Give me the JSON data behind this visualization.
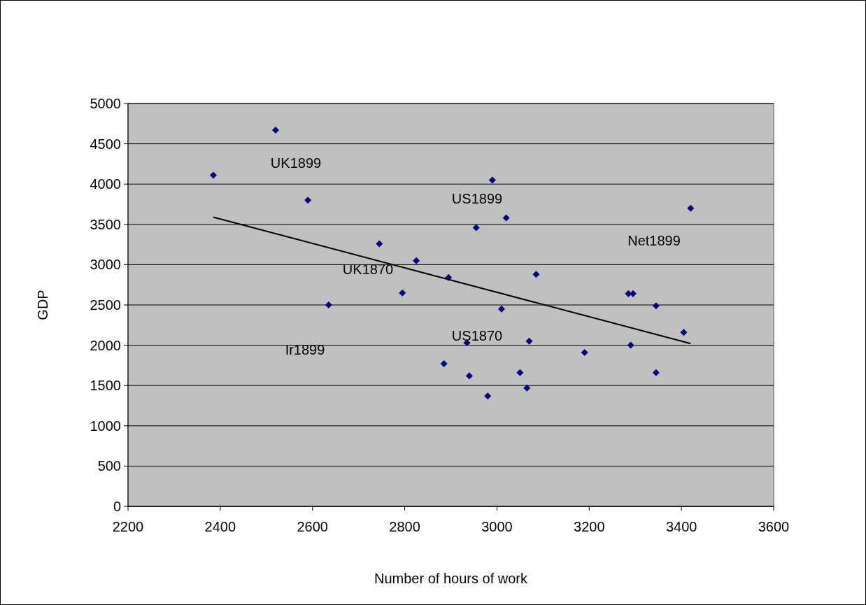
{
  "chart_data": {
    "type": "scatter",
    "xlabel": "Number of hours of work",
    "ylabel": "GDP",
    "xlim": [
      2200,
      3600
    ],
    "xticks": [
      2200,
      2400,
      2600,
      2800,
      3000,
      3200,
      3400,
      3600
    ],
    "ylim": [
      0,
      5000
    ],
    "yticks": [
      0,
      500,
      1000,
      1500,
      2000,
      2500,
      3000,
      3500,
      4000,
      4500,
      5000
    ],
    "grid": "y",
    "marker": "diamond",
    "series": [
      {
        "color": "#000080",
        "x": [
          2385,
          2520,
          2590,
          2745,
          2825,
          2895,
          2795,
          2635,
          2990,
          3020,
          2955,
          3420,
          3085,
          3285,
          3295,
          3345,
          3010,
          2935,
          3070,
          2885,
          2940,
          2980,
          3050,
          3065,
          3190,
          3290,
          3345,
          3405
        ],
        "values": [
          4110,
          4670,
          3800,
          3260,
          3050,
          2840,
          2650,
          2500,
          4050,
          3580,
          3460,
          3700,
          2880,
          2640,
          2640,
          2490,
          2450,
          2030,
          2050,
          1770,
          1620,
          1370,
          1660,
          1470,
          1910,
          2000,
          1660,
          2160
        ]
      },
      {
        "type": "line",
        "color": "#000000",
        "marker": "none",
        "x": [
          2385,
          3420
        ],
        "values": [
          3590,
          2020
        ]
      }
    ],
    "annotations": [
      "UK1899",
      "US1899",
      "Net1899",
      "UK1870",
      "Ir1899",
      "US1870"
    ]
  }
}
